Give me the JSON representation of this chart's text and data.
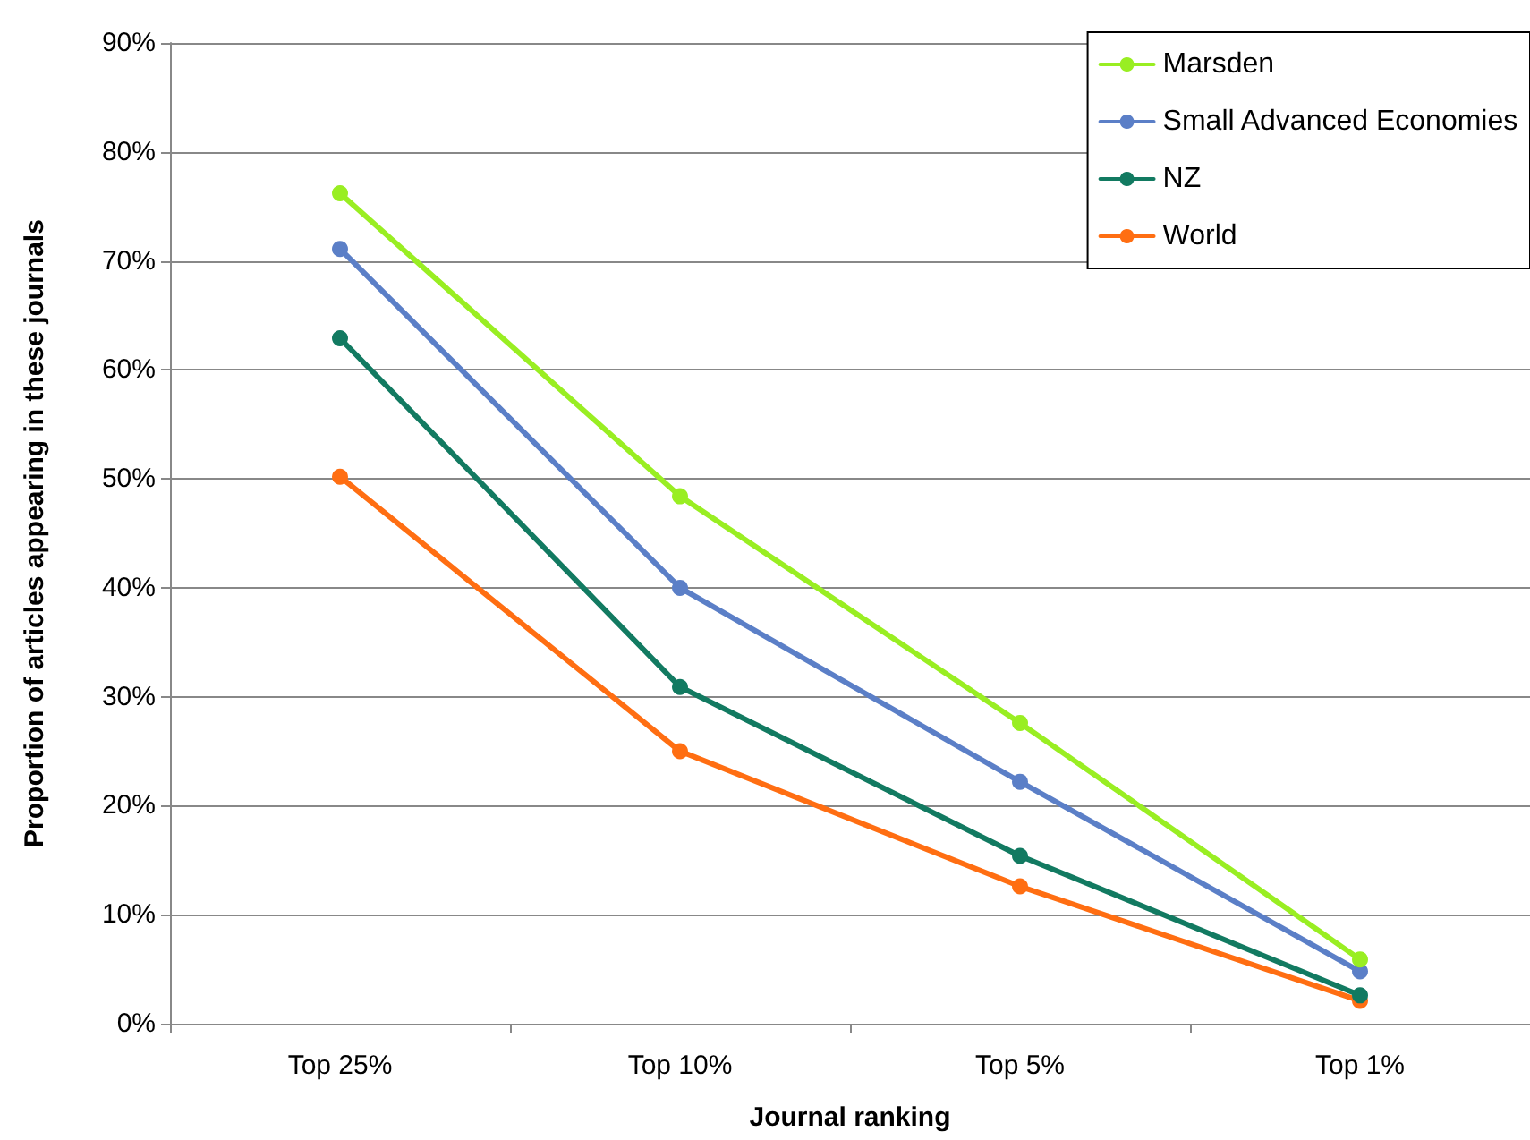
{
  "chart_data": {
    "type": "line",
    "xlabel": "Journal ranking",
    "ylabel": "Proportion of articles appearing in these journals",
    "categories": [
      "Top 25%",
      "Top 10%",
      "Top 5%",
      "Top 1%"
    ],
    "series": [
      {
        "name": "Marsden",
        "color": "#99ee22",
        "values": [
          76.2,
          48.4,
          27.6,
          5.9
        ]
      },
      {
        "name": "Small Advanced Economies",
        "color": "#5b7fc7",
        "values": [
          71.1,
          40,
          22.2,
          4.8
        ]
      },
      {
        "name": "NZ",
        "color": "#127a61",
        "values": [
          62.9,
          30.9,
          15.4,
          2.6
        ]
      },
      {
        "name": "World",
        "color": "#ff6e12",
        "values": [
          50.2,
          25,
          12.6,
          2.1
        ]
      }
    ],
    "ylim": [
      0,
      90
    ],
    "yticks": [
      {
        "value": 0,
        "label": "0%"
      },
      {
        "value": 10,
        "label": "10%"
      },
      {
        "value": 20,
        "label": "20%"
      },
      {
        "value": 30,
        "label": "30%"
      },
      {
        "value": 40,
        "label": "40%"
      },
      {
        "value": 50,
        "label": "50%"
      },
      {
        "value": 60,
        "label": "60%"
      },
      {
        "value": 70,
        "label": "70%"
      },
      {
        "value": 80,
        "label": "80%"
      },
      {
        "value": 90,
        "label": "90%"
      }
    ],
    "grid": "y",
    "legend": "top right",
    "marker": "circle",
    "line_style": "solid"
  }
}
